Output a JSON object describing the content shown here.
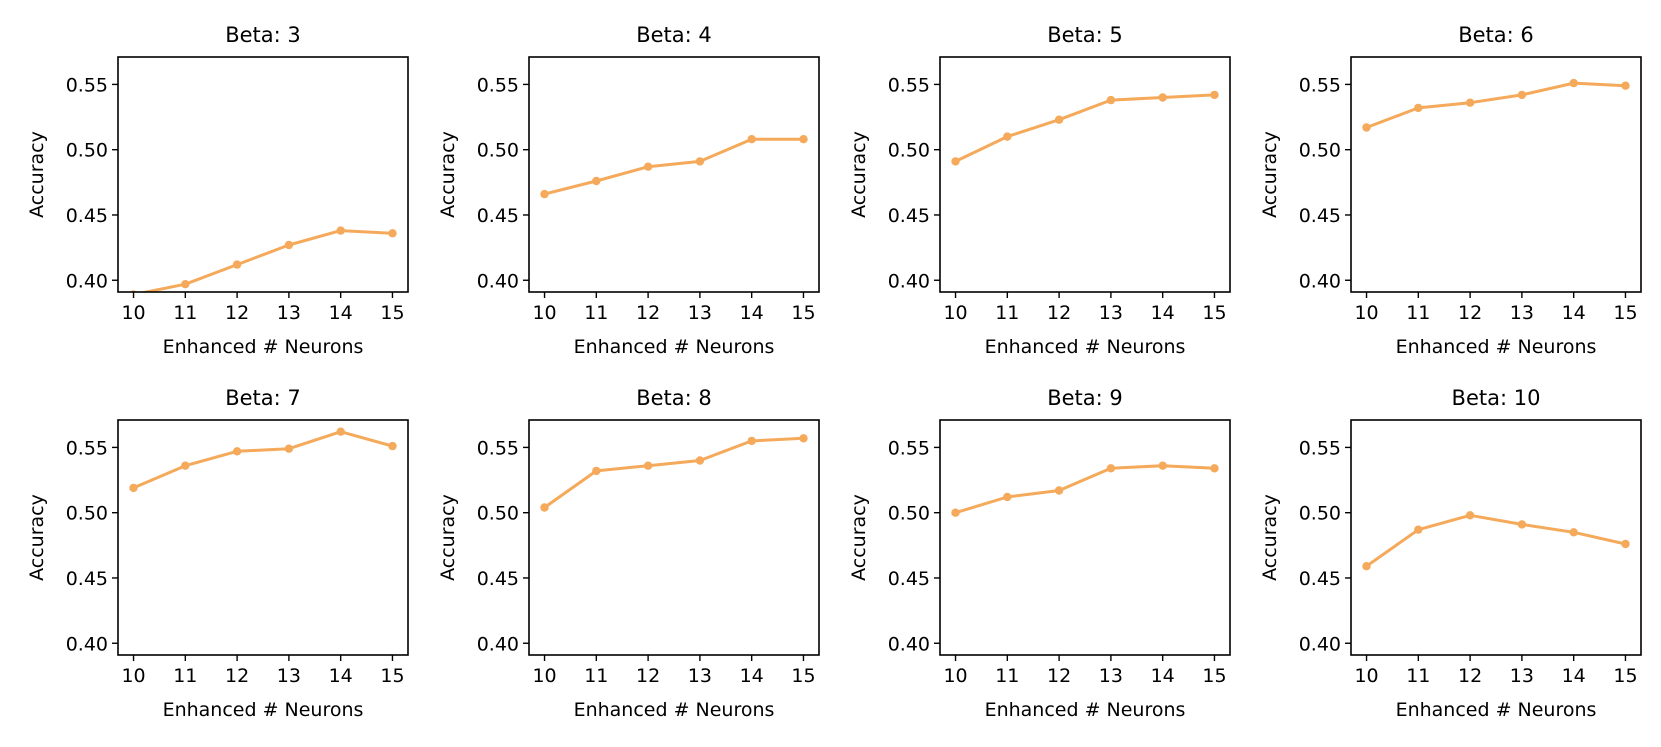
{
  "chart_data": [
    {
      "type": "line",
      "title": "Beta: 3",
      "xlabel": "Enhanced # Neurons",
      "ylabel": "Accuracy",
      "x": [
        10,
        11,
        12,
        13,
        14,
        15
      ],
      "y": [
        0.389,
        0.397,
        0.412,
        0.427,
        0.438,
        0.436
      ],
      "xticks": [
        "10",
        "11",
        "12",
        "13",
        "14",
        "15"
      ],
      "yticks": [
        "0.40",
        "0.45",
        "0.50",
        "0.55"
      ],
      "xlim": [
        9.7,
        15.3
      ],
      "ylim": [
        0.391,
        0.571
      ],
      "grid": false,
      "color": "#f5a95a"
    },
    {
      "type": "line",
      "title": "Beta: 4",
      "xlabel": "Enhanced # Neurons",
      "ylabel": "Accuracy",
      "x": [
        10,
        11,
        12,
        13,
        14,
        15
      ],
      "y": [
        0.466,
        0.476,
        0.487,
        0.491,
        0.508,
        0.508
      ],
      "xticks": [
        "10",
        "11",
        "12",
        "13",
        "14",
        "15"
      ],
      "yticks": [
        "0.40",
        "0.45",
        "0.50",
        "0.55"
      ],
      "xlim": [
        9.7,
        15.3
      ],
      "ylim": [
        0.391,
        0.571
      ],
      "grid": false,
      "color": "#f5a95a"
    },
    {
      "type": "line",
      "title": "Beta: 5",
      "xlabel": "Enhanced # Neurons",
      "ylabel": "Accuracy",
      "x": [
        10,
        11,
        12,
        13,
        14,
        15
      ],
      "y": [
        0.491,
        0.51,
        0.523,
        0.538,
        0.54,
        0.542
      ],
      "xticks": [
        "10",
        "11",
        "12",
        "13",
        "14",
        "15"
      ],
      "yticks": [
        "0.40",
        "0.45",
        "0.50",
        "0.55"
      ],
      "xlim": [
        9.7,
        15.3
      ],
      "ylim": [
        0.391,
        0.571
      ],
      "grid": false,
      "color": "#f5a95a"
    },
    {
      "type": "line",
      "title": "Beta: 6",
      "xlabel": "Enhanced # Neurons",
      "ylabel": "Accuracy",
      "x": [
        10,
        11,
        12,
        13,
        14,
        15
      ],
      "y": [
        0.517,
        0.532,
        0.536,
        0.542,
        0.551,
        0.549
      ],
      "xticks": [
        "10",
        "11",
        "12",
        "13",
        "14",
        "15"
      ],
      "yticks": [
        "0.40",
        "0.45",
        "0.50",
        "0.55"
      ],
      "xlim": [
        9.7,
        15.3
      ],
      "ylim": [
        0.391,
        0.571
      ],
      "grid": false,
      "color": "#f5a95a"
    },
    {
      "type": "line",
      "title": "Beta: 7",
      "xlabel": "Enhanced # Neurons",
      "ylabel": "Accuracy",
      "x": [
        10,
        11,
        12,
        13,
        14,
        15
      ],
      "y": [
        0.519,
        0.536,
        0.547,
        0.549,
        0.562,
        0.551
      ],
      "xticks": [
        "10",
        "11",
        "12",
        "13",
        "14",
        "15"
      ],
      "yticks": [
        "0.40",
        "0.45",
        "0.50",
        "0.55"
      ],
      "xlim": [
        9.7,
        15.3
      ],
      "ylim": [
        0.391,
        0.571
      ],
      "grid": false,
      "color": "#f5a95a"
    },
    {
      "type": "line",
      "title": "Beta: 8",
      "xlabel": "Enhanced # Neurons",
      "ylabel": "Accuracy",
      "x": [
        10,
        11,
        12,
        13,
        14,
        15
      ],
      "y": [
        0.504,
        0.532,
        0.536,
        0.54,
        0.555,
        0.557
      ],
      "xticks": [
        "10",
        "11",
        "12",
        "13",
        "14",
        "15"
      ],
      "yticks": [
        "0.40",
        "0.45",
        "0.50",
        "0.55"
      ],
      "xlim": [
        9.7,
        15.3
      ],
      "ylim": [
        0.391,
        0.571
      ],
      "grid": false,
      "color": "#f5a95a"
    },
    {
      "type": "line",
      "title": "Beta: 9",
      "xlabel": "Enhanced # Neurons",
      "ylabel": "Accuracy",
      "x": [
        10,
        11,
        12,
        13,
        14,
        15
      ],
      "y": [
        0.5,
        0.512,
        0.517,
        0.534,
        0.536,
        0.534
      ],
      "xticks": [
        "10",
        "11",
        "12",
        "13",
        "14",
        "15"
      ],
      "yticks": [
        "0.40",
        "0.45",
        "0.50",
        "0.55"
      ],
      "xlim": [
        9.7,
        15.3
      ],
      "ylim": [
        0.391,
        0.571
      ],
      "grid": false,
      "color": "#f5a95a"
    },
    {
      "type": "line",
      "title": "Beta: 10",
      "xlabel": "Enhanced # Neurons",
      "ylabel": "Accuracy",
      "x": [
        10,
        11,
        12,
        13,
        14,
        15
      ],
      "y": [
        0.459,
        0.487,
        0.498,
        0.491,
        0.485,
        0.476
      ],
      "xticks": [
        "10",
        "11",
        "12",
        "13",
        "14",
        "15"
      ],
      "yticks": [
        "0.40",
        "0.45",
        "0.50",
        "0.55"
      ],
      "xlim": [
        9.7,
        15.3
      ],
      "ylim": [
        0.391,
        0.571
      ],
      "grid": false,
      "color": "#f5a95a"
    }
  ]
}
